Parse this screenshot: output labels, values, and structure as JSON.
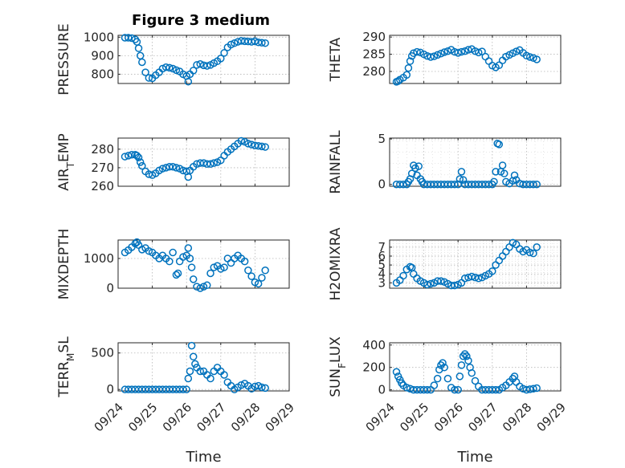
{
  "figure": {
    "background": "#ffffff",
    "marker_color": "#0072BD",
    "marker": "circle",
    "shared_xlabel": "Time"
  },
  "chart_data": [
    {
      "type": "scatter",
      "title": "Figure 3 medium",
      "ylabel": "PRESSURE",
      "ylabel_parts": [
        {
          "t": "PRESSURE"
        }
      ],
      "xlim": [
        "2023-09-24",
        "2023-09-29"
      ],
      "ylim": [
        750,
        1010
      ],
      "yticks": [
        800,
        900,
        1000
      ],
      "xticks": [
        "09/24",
        "09/25",
        "09/26",
        "09/27",
        "09/28",
        "09/29"
      ],
      "show_xtick_labels": false,
      "grid": true,
      "minor_grid": false,
      "x": [
        24.2,
        24.3,
        24.4,
        24.5,
        24.55,
        24.6,
        24.65,
        24.7,
        24.8,
        24.9,
        25.0,
        25.1,
        25.2,
        25.3,
        25.4,
        25.5,
        25.6,
        25.7,
        25.8,
        25.9,
        26.0,
        26.05,
        26.1,
        26.2,
        26.3,
        26.4,
        26.5,
        26.6,
        26.7,
        26.8,
        26.9,
        27.0,
        27.1,
        27.2,
        27.3,
        27.4,
        27.5,
        27.6,
        27.7,
        27.8,
        27.9,
        28.0,
        28.1,
        28.2,
        28.3
      ],
      "y": [
        997,
        997,
        995,
        988,
        975,
        940,
        900,
        865,
        810,
        780,
        778,
        795,
        810,
        830,
        838,
        835,
        830,
        822,
        815,
        800,
        790,
        760,
        800,
        820,
        850,
        855,
        848,
        845,
        850,
        860,
        870,
        885,
        915,
        945,
        960,
        968,
        975,
        980,
        978,
        977,
        975,
        978,
        972,
        970,
        968
      ]
    },
    {
      "type": "scatter",
      "title": "",
      "ylabel": "THETA",
      "ylabel_parts": [
        {
          "t": "THETA"
        }
      ],
      "xlim": [
        "2023-09-24",
        "2023-09-29"
      ],
      "ylim": [
        276.5,
        290.5
      ],
      "yticks": [
        280,
        285,
        290
      ],
      "xticks": [
        "09/24",
        "09/25",
        "09/26",
        "09/27",
        "09/28",
        "09/29"
      ],
      "show_xtick_labels": false,
      "grid": true,
      "minor_grid": false,
      "x": [
        24.2,
        24.25,
        24.3,
        24.4,
        24.5,
        24.55,
        24.6,
        24.65,
        24.7,
        24.8,
        24.9,
        25.0,
        25.1,
        25.2,
        25.3,
        25.4,
        25.5,
        25.6,
        25.7,
        25.8,
        25.9,
        26.0,
        26.1,
        26.2,
        26.3,
        26.4,
        26.5,
        26.6,
        26.7,
        26.8,
        26.9,
        27.0,
        27.1,
        27.2,
        27.3,
        27.4,
        27.5,
        27.6,
        27.7,
        27.8,
        27.9,
        28.0,
        28.1,
        28.2,
        28.3
      ],
      "y": [
        277,
        277.2,
        277.6,
        278.2,
        279,
        281,
        283,
        284.5,
        285.3,
        285.7,
        285.5,
        285,
        284.5,
        284.2,
        284.4,
        284.8,
        285.2,
        285.6,
        285.9,
        286.3,
        285.7,
        285.4,
        285.7,
        285.9,
        286.3,
        286.5,
        285.9,
        285.5,
        285.8,
        284.3,
        283,
        281.7,
        281.2,
        281.8,
        283.2,
        284.3,
        284.8,
        285.3,
        285.8,
        286.2,
        285.4,
        284.6,
        284.2,
        283.9,
        283.5
      ]
    },
    {
      "type": "scatter",
      "title": "",
      "ylabel": "AIR_TEMP",
      "ylabel_parts": [
        {
          "t": "AIR"
        },
        {
          "t": "T",
          "sub": true
        },
        {
          "t": "EMP"
        }
      ],
      "xlim": [
        "2023-09-24",
        "2023-09-29"
      ],
      "ylim": [
        260,
        286
      ],
      "yticks": [
        260,
        270,
        280
      ],
      "xticks": [
        "09/24",
        "09/25",
        "09/26",
        "09/27",
        "09/28",
        "09/29"
      ],
      "show_xtick_labels": false,
      "grid": true,
      "minor_grid": false,
      "x": [
        24.2,
        24.3,
        24.4,
        24.5,
        24.55,
        24.6,
        24.65,
        24.7,
        24.8,
        24.9,
        25.0,
        25.1,
        25.2,
        25.3,
        25.4,
        25.5,
        25.6,
        25.7,
        25.8,
        25.9,
        26.0,
        26.05,
        26.1,
        26.2,
        26.3,
        26.4,
        26.5,
        26.6,
        26.7,
        26.8,
        26.9,
        27.0,
        27.1,
        27.2,
        27.3,
        27.4,
        27.5,
        27.6,
        27.7,
        27.8,
        27.9,
        28.0,
        28.1,
        28.2,
        28.3
      ],
      "y": [
        276,
        276.5,
        277,
        277,
        276.5,
        275.5,
        273,
        271,
        268,
        266.5,
        266,
        267,
        268.5,
        269.5,
        270,
        270.5,
        270.5,
        270,
        269.5,
        268.5,
        268,
        265,
        268.5,
        270.5,
        272,
        272.5,
        272.5,
        272,
        272,
        272.5,
        273,
        274,
        276.5,
        278.5,
        280,
        281.5,
        283,
        284.5,
        284,
        283,
        282.5,
        282,
        281.8,
        281.5,
        281.2
      ]
    },
    {
      "type": "scatter",
      "title": "",
      "ylabel": "RAINFALL",
      "ylabel_parts": [
        {
          "t": "RAINFALL"
        }
      ],
      "xlim": [
        "2023-09-24",
        "2023-09-29"
      ],
      "ylim": [
        -0.2,
        5.1
      ],
      "yticks": [
        0,
        5
      ],
      "xticks": [
        "09/24",
        "09/25",
        "09/26",
        "09/27",
        "09/28",
        "09/29"
      ],
      "show_xtick_labels": false,
      "grid": true,
      "minor_grid": true,
      "x": [
        24.2,
        24.3,
        24.4,
        24.5,
        24.55,
        24.6,
        24.65,
        24.7,
        24.75,
        24.8,
        24.85,
        24.9,
        24.95,
        25.0,
        25.1,
        25.2,
        25.3,
        25.4,
        25.5,
        25.6,
        25.7,
        25.8,
        25.9,
        26.0,
        26.05,
        26.1,
        26.15,
        26.2,
        26.3,
        26.4,
        26.5,
        26.6,
        26.7,
        26.8,
        26.9,
        27.0,
        27.05,
        27.1,
        27.15,
        27.2,
        27.25,
        27.3,
        27.35,
        27.4,
        27.5,
        27.6,
        27.65,
        27.7,
        27.8,
        27.9,
        28.0,
        28.1,
        28.2,
        28.3
      ],
      "y": [
        0,
        0,
        0,
        0,
        0.3,
        0.6,
        1.2,
        2.1,
        1.8,
        1,
        2,
        0.6,
        0.3,
        0,
        0,
        0,
        0,
        0,
        0,
        0,
        0,
        0,
        0,
        0,
        0.6,
        1.4,
        0.5,
        0,
        0,
        0,
        0,
        0,
        0,
        0,
        0,
        0,
        0.3,
        1.4,
        4.5,
        4.4,
        1.4,
        2.1,
        1.2,
        0.3,
        0.1,
        0.4,
        1,
        0.5,
        0.1,
        0,
        0,
        0,
        0,
        0
      ]
    },
    {
      "type": "scatter",
      "title": "",
      "ylabel": "MIXDEPTH",
      "ylabel_parts": [
        {
          "t": "MIXDEPTH"
        }
      ],
      "xlim": [
        "2023-09-24",
        "2023-09-29"
      ],
      "ylim": [
        0,
        1620
      ],
      "yticks": [
        0,
        1000
      ],
      "xticks": [
        "09/24",
        "09/25",
        "09/26",
        "09/27",
        "09/28",
        "09/29"
      ],
      "show_xtick_labels": false,
      "grid": true,
      "minor_grid": false,
      "x": [
        24.2,
        24.3,
        24.4,
        24.5,
        24.55,
        24.6,
        24.7,
        24.8,
        24.9,
        25.0,
        25.1,
        25.2,
        25.3,
        25.4,
        25.5,
        25.6,
        25.7,
        25.75,
        25.8,
        25.9,
        26.0,
        26.05,
        26.1,
        26.15,
        26.2,
        26.3,
        26.4,
        26.5,
        26.6,
        26.7,
        26.8,
        26.9,
        27.0,
        27.1,
        27.2,
        27.3,
        27.4,
        27.5,
        27.6,
        27.7,
        27.8,
        27.9,
        28.0,
        28.1,
        28.2,
        28.3
      ],
      "y": [
        1200,
        1280,
        1380,
        1500,
        1550,
        1450,
        1300,
        1350,
        1250,
        1200,
        1100,
        1000,
        1100,
        1000,
        900,
        1200,
        450,
        500,
        900,
        1050,
        1100,
        1350,
        1000,
        700,
        300,
        50,
        0,
        50,
        100,
        500,
        700,
        750,
        650,
        700,
        1000,
        850,
        1000,
        1100,
        1000,
        900,
        600,
        400,
        200,
        150,
        350,
        600
      ]
    },
    {
      "type": "scatter",
      "title": "",
      "ylabel": "H2OMIXRA",
      "ylabel_parts": [
        {
          "t": "H2OMIXRA"
        }
      ],
      "xlim": [
        "2023-09-24",
        "2023-09-29"
      ],
      "ylim": [
        2.4,
        7.8
      ],
      "yticks": [
        3,
        4,
        5,
        6,
        7
      ],
      "xticks": [
        "09/24",
        "09/25",
        "09/26",
        "09/27",
        "09/28",
        "09/29"
      ],
      "show_xtick_labels": false,
      "grid": true,
      "minor_grid": true,
      "x": [
        24.2,
        24.3,
        24.4,
        24.5,
        24.6,
        24.65,
        24.7,
        24.8,
        24.9,
        25.0,
        25.1,
        25.2,
        25.3,
        25.4,
        25.5,
        25.6,
        25.7,
        25.8,
        25.9,
        26.0,
        26.1,
        26.2,
        26.3,
        26.4,
        26.5,
        26.6,
        26.7,
        26.8,
        26.9,
        27.0,
        27.1,
        27.2,
        27.3,
        27.4,
        27.5,
        27.6,
        27.7,
        27.8,
        27.9,
        28.0,
        28.1,
        28.2,
        28.3
      ],
      "y": [
        3,
        3.3,
        3.8,
        4.5,
        4.8,
        4.7,
        4,
        3.5,
        3.2,
        3,
        2.8,
        2.9,
        3,
        3.2,
        3.2,
        3.1,
        2.9,
        2.7,
        2.7,
        2.8,
        3,
        3.5,
        3.6,
        3.7,
        3.6,
        3.5,
        3.6,
        3.8,
        4,
        4.3,
        5,
        5.5,
        6,
        6.5,
        7,
        7.5,
        7.3,
        6.8,
        6.5,
        6.7,
        6.4,
        6.3,
        7
      ]
    },
    {
      "type": "scatter",
      "title": "",
      "ylabel": "TERR_MSL",
      "ylabel_parts": [
        {
          "t": "TERR"
        },
        {
          "t": "M",
          "sub": true
        },
        {
          "t": "SL"
        }
      ],
      "xlim": [
        "2023-09-24",
        "2023-09-29"
      ],
      "ylim": [
        -20,
        640
      ],
      "yticks": [
        0,
        500
      ],
      "xticks": [
        "09/24",
        "09/25",
        "09/26",
        "09/27",
        "09/28",
        "09/29"
      ],
      "xticks_show": [
        "09/24",
        "09/25",
        "09/26",
        "09/27",
        "09/28",
        "09/29"
      ],
      "show_xtick_labels": true,
      "xlabel": "Time",
      "grid": true,
      "minor_grid": false,
      "x": [
        24.2,
        24.3,
        24.4,
        24.5,
        24.6,
        24.7,
        24.8,
        24.9,
        25.0,
        25.1,
        25.2,
        25.3,
        25.4,
        25.5,
        25.6,
        25.7,
        25.8,
        25.9,
        26.0,
        26.05,
        26.1,
        26.15,
        26.2,
        26.25,
        26.3,
        26.4,
        26.5,
        26.6,
        26.7,
        26.8,
        26.9,
        27.0,
        27.1,
        27.2,
        27.3,
        27.4,
        27.5,
        27.6,
        27.7,
        27.8,
        27.9,
        28.0,
        28.1,
        28.2,
        28.3
      ],
      "y": [
        0,
        0,
        0,
        0,
        0,
        0,
        0,
        0,
        0,
        0,
        0,
        0,
        0,
        0,
        0,
        0,
        0,
        0,
        0,
        150,
        250,
        600,
        450,
        350,
        300,
        250,
        250,
        200,
        150,
        250,
        300,
        250,
        200,
        100,
        50,
        0,
        30,
        60,
        80,
        50,
        10,
        40,
        50,
        30,
        20
      ]
    },
    {
      "type": "scatter",
      "title": "",
      "ylabel": "SUN_FLUX",
      "ylabel_parts": [
        {
          "t": "SUN"
        },
        {
          "t": "F",
          "sub": true
        },
        {
          "t": "LUX"
        }
      ],
      "xlim": [
        "2023-09-24",
        "2023-09-29"
      ],
      "ylim": [
        -10,
        420
      ],
      "yticks": [
        0,
        200,
        400
      ],
      "xticks": [
        "09/24",
        "09/25",
        "09/26",
        "09/27",
        "09/28",
        "09/29"
      ],
      "xticks_show": [
        "09/24",
        "09/25",
        "09/26",
        "09/27",
        "09/28",
        "09/29"
      ],
      "show_xtick_labels": true,
      "xlabel": "Time",
      "grid": true,
      "minor_grid": false,
      "x": [
        24.2,
        24.25,
        24.3,
        24.35,
        24.4,
        24.5,
        24.6,
        24.7,
        24.8,
        24.9,
        25.0,
        25.1,
        25.2,
        25.3,
        25.4,
        25.45,
        25.5,
        25.55,
        25.6,
        25.7,
        25.8,
        25.9,
        26.0,
        26.05,
        26.1,
        26.15,
        26.2,
        26.25,
        26.3,
        26.35,
        26.4,
        26.5,
        26.6,
        26.7,
        26.8,
        26.9,
        27.0,
        27.1,
        27.2,
        27.3,
        27.4,
        27.5,
        27.6,
        27.65,
        27.7,
        27.8,
        27.9,
        28.0,
        28.1,
        28.2,
        28.3
      ],
      "y": [
        160,
        120,
        90,
        60,
        40,
        20,
        10,
        0,
        0,
        0,
        0,
        0,
        0,
        40,
        100,
        180,
        220,
        240,
        200,
        100,
        20,
        0,
        0,
        120,
        220,
        300,
        320,
        300,
        260,
        200,
        150,
        80,
        30,
        0,
        0,
        0,
        0,
        0,
        0,
        20,
        40,
        70,
        100,
        120,
        70,
        30,
        10,
        0,
        5,
        10,
        15
      ]
    }
  ]
}
